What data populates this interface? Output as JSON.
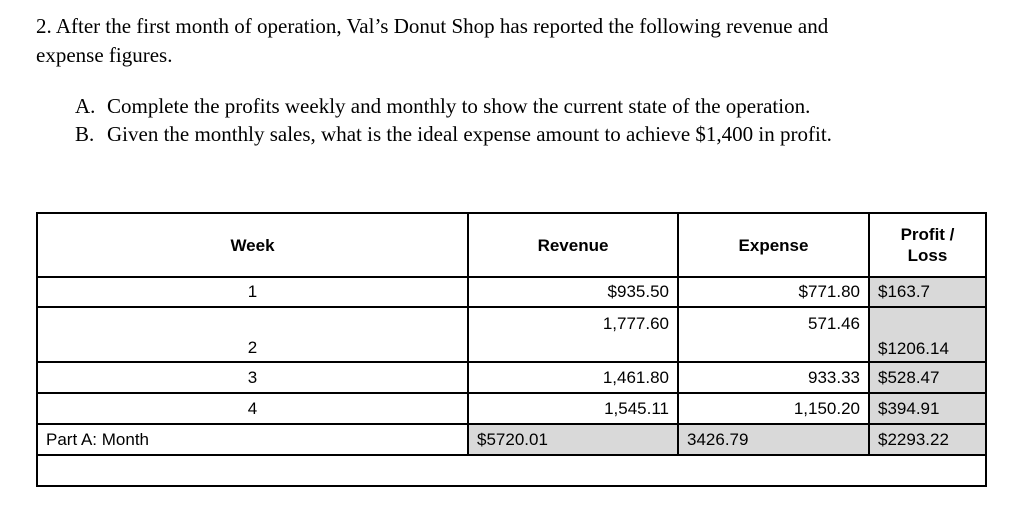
{
  "problem": {
    "intro_lines": [
      "2. After the first month of operation, Val’s Donut Shop has reported the following revenue and",
      "expense figures."
    ],
    "instructions": [
      {
        "label": "A.",
        "text": "Complete the profits weekly and monthly to show the current state of the operation."
      },
      {
        "label": "B.",
        "text": "Given the monthly sales, what is the ideal expense amount to achieve $1,400 in profit."
      }
    ]
  },
  "table": {
    "headers": {
      "week": "Week",
      "revenue": "Revenue",
      "expense": "Expense",
      "profit_line1": "Profit /",
      "profit_line2": "Loss"
    },
    "rows": [
      {
        "week": "1",
        "revenue": "$935.50",
        "expense": "$771.80",
        "profit": "$163.7"
      },
      {
        "week": "2",
        "revenue": "1,777.60",
        "expense": "571.46",
        "profit": "$1206.14"
      },
      {
        "week": "3",
        "revenue": "1,461.80",
        "expense": "933.33",
        "profit": "$528.47"
      },
      {
        "week": "4",
        "revenue": "1,545.11",
        "expense": "1,150.20",
        "profit": "$394.91"
      }
    ],
    "month_row": {
      "label": "Part A: Month",
      "revenue": "$5720.01",
      "expense": "3426.79",
      "profit": "$2293.22"
    }
  },
  "colors": {
    "shaded_cell": "#d9d9d9",
    "border": "#000000",
    "background": "#ffffff"
  }
}
